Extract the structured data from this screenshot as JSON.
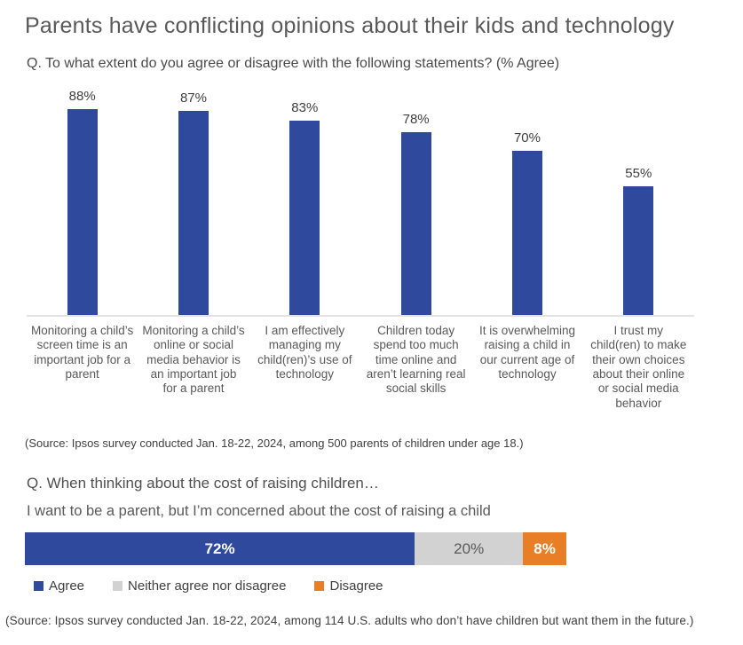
{
  "page": {
    "title": "Parents have conflicting opinions about their kids and technology"
  },
  "chart_data": [
    {
      "type": "bar",
      "question": "Q. To what extent do you agree or disagree with the following statements? (% Agree)",
      "categories": [
        "Monitoring a child’s screen time is an important job for a parent",
        "Monitoring a child’s online or social media behavior is an important job for a parent",
        "I am effectively managing my child(ren)’s use of technology",
        "Children today spend too much time online and aren’t learning real social skills",
        "It is overwhelming raising a child in our current age of technology",
        "I trust my child(ren) to make their own choices about their online or social media behavior"
      ],
      "values": [
        88,
        87,
        83,
        78,
        70,
        55
      ],
      "value_labels": [
        "88%",
        "87%",
        "83%",
        "78%",
        "70%",
        "55%"
      ],
      "ylim": [
        0,
        100
      ],
      "grid": false,
      "legend_position": "none",
      "bar_color": "#2f4a9d",
      "source": "(Source: Ipsos survey conducted Jan. 18-22, 2024, among 500 parents of children under age 18.)"
    },
    {
      "type": "bar",
      "orientation": "horizontal-stacked",
      "question": "Q. When thinking about the cost of raising children…",
      "statement": "I want to be a parent, but I’m concerned about the cost of raising a child",
      "xlim": [
        0,
        100
      ],
      "grid": false,
      "legend_position": "bottom",
      "segments": [
        {
          "label": "Agree",
          "value": 72,
          "value_label": "72%",
          "color": "#2f4a9d",
          "text_color": "#ffffff"
        },
        {
          "label": "Neither agree nor disagree",
          "value": 20,
          "value_label": "20%",
          "color": "#d2d2d2",
          "text_color": "#595959"
        },
        {
          "label": "Disagree",
          "value": 8,
          "value_label": "8%",
          "color": "#e87e26",
          "text_color": "#ffffff"
        }
      ],
      "source": "(Source: Ipsos survey conducted Jan. 18-22, 2024, among 114 U.S. adults who don’t have children but want them in the future.)"
    }
  ],
  "colors": {
    "bar_blue": "#2f4a9d",
    "neutral_gray": "#d2d2d2",
    "disagree_orange": "#e87e26",
    "title_text": "#595959",
    "body_text": "#404040",
    "axis_line": "#e2e2e2"
  }
}
